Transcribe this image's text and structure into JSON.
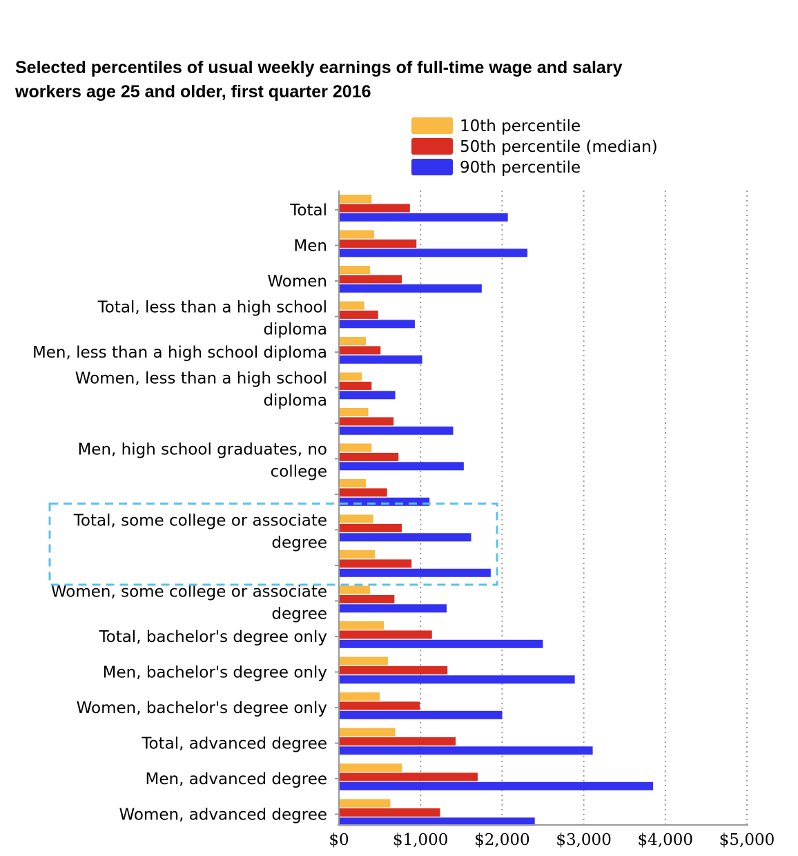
{
  "chart_data": {
    "type": "bar",
    "orientation": "horizontal",
    "title": "Selected percentiles of usual weekly earnings of full-time wage and salary workers age 25 and older, first quarter 2016",
    "title_lines": [
      "Selected percentiles of usual weekly earnings of full-time wage and salary",
      "workers age 25 and older, first quarter 2016"
    ],
    "xlim": [
      0,
      5000
    ],
    "x_ticks": [
      "$0",
      "$1,000",
      "$2,000",
      "$3,000",
      "$4,000",
      "$5,000"
    ],
    "grid": "vertical dotted",
    "legend_position": "top-right",
    "categories": [
      "Total",
      "Men",
      "Women",
      "Total, less than a high school diploma",
      "Men, less than a high school diploma",
      "Women, less than a high school diploma",
      "",
      "Men, high school graduates, no college",
      "",
      "Total, some college or associate degree",
      "",
      "Women, some college or associate degree",
      "Total, bachelor's degree only",
      "Men, bachelor's degree only",
      "Women, bachelor's degree only",
      "Total, advanced degree",
      "Men, advanced degree",
      "Women, advanced degree"
    ],
    "category_label_lines": [
      [
        "Total"
      ],
      [
        "Men"
      ],
      [
        "Women"
      ],
      [
        "Total, less than a high school",
        "diploma"
      ],
      [
        "Men, less than a high school diploma"
      ],
      [
        "Women, less than a high school",
        "diploma"
      ],
      [],
      [
        "Men, high school graduates, no",
        "college"
      ],
      [],
      [
        "Total, some college or associate",
        "degree"
      ],
      [],
      [
        "Women, some college or associate",
        "degree"
      ],
      [
        "Total, bachelor's degree only"
      ],
      [
        "Men, bachelor's degree only"
      ],
      [
        "Women, bachelor's degree only"
      ],
      [
        "Total, advanced degree"
      ],
      [
        "Men, advanced degree"
      ],
      [
        "Women, advanced degree"
      ]
    ],
    "series": [
      {
        "name": "10th percentile",
        "color": "#f9b942",
        "values": [
          400,
          430,
          380,
          310,
          330,
          280,
          360,
          400,
          330,
          420,
          440,
          380,
          550,
          600,
          500,
          690,
          770,
          630
        ]
      },
      {
        "name": "50th percentile (median)",
        "color": "#d92d21",
        "values": [
          870,
          950,
          770,
          480,
          510,
          400,
          670,
          730,
          590,
          770,
          890,
          680,
          1140,
          1330,
          990,
          1430,
          1700,
          1240
        ]
      },
      {
        "name": "90th percentile",
        "color": "#3232f0",
        "values": [
          2070,
          2310,
          1750,
          930,
          1020,
          690,
          1400,
          1530,
          1110,
          1620,
          1860,
          1320,
          2500,
          2890,
          2000,
          3110,
          3850,
          2400
        ]
      }
    ],
    "highlight": {
      "style": "dashed",
      "color": "#5bc1ea",
      "from_category": 9,
      "to_category": 10
    }
  }
}
